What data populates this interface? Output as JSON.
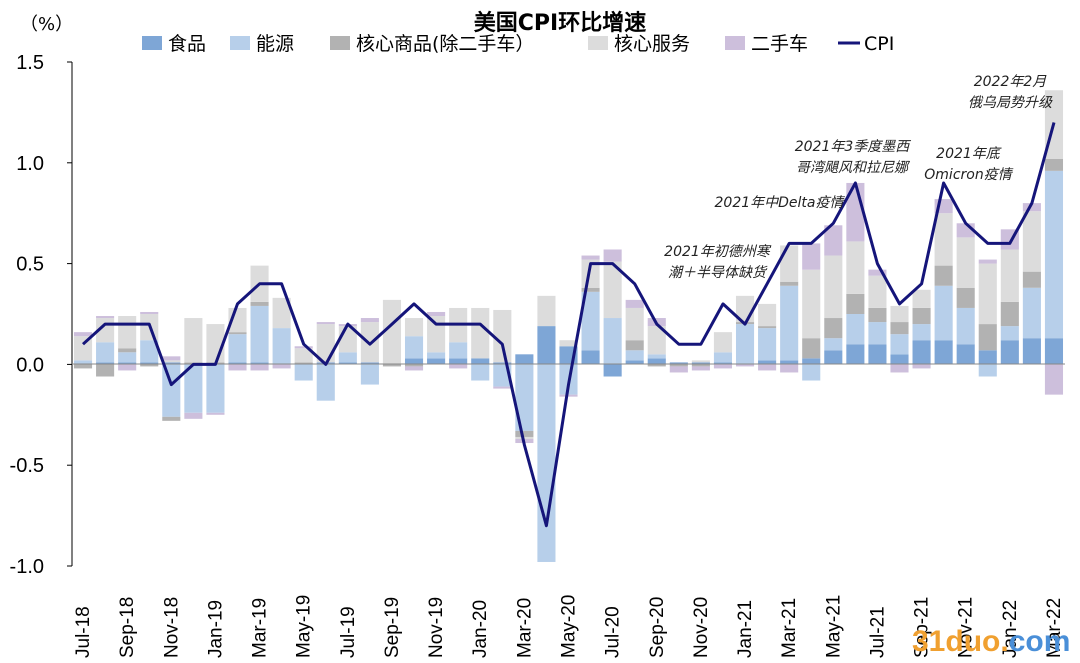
{
  "chart_data": {
    "type": "bar",
    "title": "美国CPI环比增速",
    "unit_label": "（%）",
    "stacked": true,
    "ylim": [
      -1.0,
      1.5
    ],
    "yticks": [
      "1.5",
      "1.0",
      "0.5",
      "0.0",
      "-0.5",
      "-1.0"
    ],
    "x_tick_labels": [
      "Jul-18",
      "Sep-18",
      "Nov-18",
      "Jan-19",
      "Mar-19",
      "May-19",
      "Jul-19",
      "Sep-19",
      "Nov-19",
      "Jan-20",
      "Mar-20",
      "May-20",
      "Jul-20",
      "Sep-20",
      "Nov-20",
      "Jan-21",
      "Mar-21",
      "May-21",
      "Jul-21",
      "Sep-21",
      "Nov-21",
      "Jan-22",
      "Mar-22"
    ],
    "categories": [
      "Jul-18",
      "Aug-18",
      "Sep-18",
      "Oct-18",
      "Nov-18",
      "Dec-18",
      "Jan-19",
      "Feb-19",
      "Mar-19",
      "Apr-19",
      "May-19",
      "Jun-19",
      "Jul-19",
      "Aug-19",
      "Sep-19",
      "Oct-19",
      "Nov-19",
      "Dec-19",
      "Jan-20",
      "Feb-20",
      "Mar-20",
      "Apr-20",
      "May-20",
      "Jun-20",
      "Jul-20",
      "Aug-20",
      "Sep-20",
      "Oct-20",
      "Nov-20",
      "Dec-20",
      "Jan-21",
      "Feb-21",
      "Mar-21",
      "Apr-21",
      "May-21",
      "Jun-21",
      "Jul-21",
      "Aug-21",
      "Sep-21",
      "Oct-21",
      "Nov-21",
      "Dec-21",
      "Jan-22",
      "Feb-22",
      "Mar-22"
    ],
    "legend": [
      "食品",
      "能源",
      "核心商品(除二手车）",
      "核心服务",
      "二手车",
      "CPI"
    ],
    "legend_position": "top",
    "grid": false,
    "colors": {
      "food": "#7ea6d6",
      "energy": "#b7cfea",
      "core_goods": "#b2b2b2",
      "core_services": "#dcdcdc",
      "used_cars": "#cdbfdc",
      "cpi": "#15157a"
    },
    "series": [
      {
        "name": "食品",
        "key": "food",
        "values": [
          0.0,
          0.01,
          0.01,
          0.01,
          0.01,
          0.0,
          0.0,
          0.01,
          0.01,
          0.0,
          0.0,
          0.01,
          0.01,
          0.01,
          0.0,
          0.03,
          0.03,
          0.03,
          0.03,
          0.01,
          0.05,
          0.19,
          0.09,
          0.07,
          -0.06,
          0.02,
          0.03,
          0.01,
          0.01,
          0.01,
          0.0,
          0.02,
          0.02,
          0.03,
          0.07,
          0.1,
          0.1,
          0.05,
          0.12,
          0.12,
          0.1,
          0.07,
          0.12,
          0.13,
          0.13
        ]
      },
      {
        "name": "能源",
        "key": "energy",
        "values": [
          0.02,
          0.1,
          0.05,
          0.11,
          -0.26,
          -0.24,
          -0.24,
          0.14,
          0.28,
          0.18,
          -0.08,
          -0.18,
          0.05,
          -0.1,
          0.0,
          0.11,
          0.03,
          0.08,
          -0.08,
          -0.11,
          -0.33,
          -0.98,
          -0.15,
          0.29,
          0.23,
          0.05,
          0.02,
          0.0,
          0.0,
          0.05,
          0.2,
          0.16,
          0.37,
          -0.08,
          0.06,
          0.15,
          0.11,
          0.1,
          0.08,
          0.27,
          0.18,
          -0.06,
          0.07,
          0.25,
          0.83
        ]
      },
      {
        "name": "核心商品(除二手车）",
        "key": "core_goods",
        "values": [
          -0.02,
          -0.06,
          0.02,
          -0.01,
          -0.02,
          0.01,
          0.01,
          0.01,
          0.02,
          0.0,
          0.01,
          0.0,
          0.0,
          0.0,
          -0.01,
          -0.01,
          0.0,
          0.0,
          0.0,
          0.0,
          -0.03,
          0.0,
          0.0,
          0.02,
          0.0,
          0.05,
          -0.01,
          -0.01,
          -0.01,
          0.0,
          0.01,
          0.01,
          0.02,
          0.1,
          0.1,
          0.1,
          0.07,
          0.06,
          0.08,
          0.1,
          0.1,
          0.13,
          0.12,
          0.08,
          0.06
        ]
      },
      {
        "name": "核心服务",
        "key": "core_services",
        "values": [
          0.12,
          0.12,
          0.16,
          0.13,
          0.01,
          0.22,
          0.19,
          0.12,
          0.18,
          0.15,
          0.07,
          0.19,
          0.13,
          0.2,
          0.32,
          0.09,
          0.18,
          0.17,
          0.25,
          0.26,
          -0.01,
          0.15,
          0.03,
          0.14,
          0.28,
          0.16,
          0.14,
          0.0,
          0.01,
          0.1,
          0.13,
          0.11,
          0.18,
          0.34,
          0.31,
          0.26,
          0.16,
          0.08,
          0.09,
          0.26,
          0.25,
          0.3,
          0.26,
          0.3,
          0.34
        ]
      },
      {
        "name": "二手车",
        "key": "used_cars",
        "values": [
          0.02,
          0.01,
          -0.03,
          0.01,
          0.02,
          -0.03,
          -0.01,
          -0.03,
          -0.03,
          -0.02,
          0.01,
          0.01,
          0.01,
          0.02,
          0.0,
          -0.02,
          0.02,
          -0.02,
          0.0,
          -0.01,
          -0.02,
          0.0,
          -0.01,
          0.02,
          0.06,
          0.04,
          0.04,
          -0.03,
          -0.02,
          -0.02,
          -0.01,
          -0.03,
          -0.04,
          0.13,
          0.15,
          0.29,
          0.03,
          -0.04,
          -0.02,
          0.07,
          0.07,
          0.02,
          0.1,
          0.04,
          -0.15
        ]
      }
    ],
    "line_series": {
      "name": "CPI",
      "key": "cpi",
      "values": [
        0.1,
        0.2,
        0.2,
        0.2,
        -0.1,
        0.0,
        0.0,
        0.3,
        0.4,
        0.4,
        0.1,
        0.0,
        0.2,
        0.1,
        0.2,
        0.3,
        0.2,
        0.2,
        0.2,
        0.1,
        -0.4,
        -0.8,
        -0.1,
        0.5,
        0.5,
        0.4,
        0.2,
        0.1,
        0.1,
        0.3,
        0.2,
        0.4,
        0.6,
        0.6,
        0.7,
        0.9,
        0.5,
        0.3,
        0.4,
        0.9,
        0.7,
        0.6,
        0.6,
        0.8,
        1.2
      ]
    },
    "annotations": [
      {
        "lines": [
          "2022年2月",
          "俄乌局势升级"
        ]
      },
      {
        "lines": [
          "2021年3季度墨西",
          "哥湾飓风和拉尼娜"
        ]
      },
      {
        "lines": [
          "2021年底",
          "Omicron疫情"
        ]
      },
      {
        "lines": [
          "2021年中Delta疫情"
        ]
      },
      {
        "lines": [
          "2021年初德州寒",
          "潮＋半导体缺货"
        ]
      }
    ]
  },
  "watermark": "31duo.com"
}
